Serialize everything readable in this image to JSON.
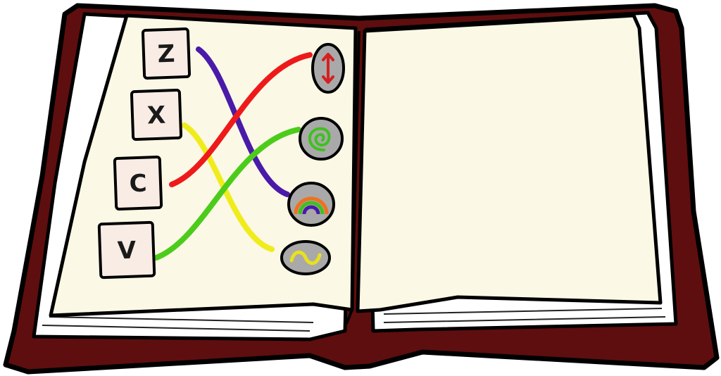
{
  "book": {
    "cover_color": "#5e0e0e",
    "page_color": "#fbf8e6",
    "page_edge_color": "#ffffff"
  },
  "keys": [
    {
      "label": "Z",
      "tile_color": "#f8ece4"
    },
    {
      "label": "X",
      "tile_color": "#f8ece4"
    },
    {
      "label": "C",
      "tile_color": "#f8ece4"
    },
    {
      "label": "V",
      "tile_color": "#f8ece4"
    }
  ],
  "spell_symbols": [
    {
      "name": "arrow-up-down-icon",
      "stone_color": "#a9a9a9",
      "symbol_color": "#d42020"
    },
    {
      "name": "spiral-icon",
      "stone_color": "#a9a9a9",
      "symbol_color": "#40c020"
    },
    {
      "name": "rainbow-icon",
      "stone_color": "#a9a9a9",
      "symbol_color": "#f07020"
    },
    {
      "name": "wave-icon",
      "stone_color": "#a9a9a9",
      "symbol_color": "#e8e020"
    }
  ],
  "connections": [
    {
      "key": "Z",
      "symbol": "rainbow-icon",
      "color": "#4a1aa8"
    },
    {
      "key": "X",
      "symbol": "wave-icon",
      "color": "#f0ec1c"
    },
    {
      "key": "C",
      "symbol": "arrow-up-down-icon",
      "color": "#ee1a1a"
    },
    {
      "key": "V",
      "symbol": "spiral-icon",
      "color": "#4ccc1a"
    }
  ]
}
